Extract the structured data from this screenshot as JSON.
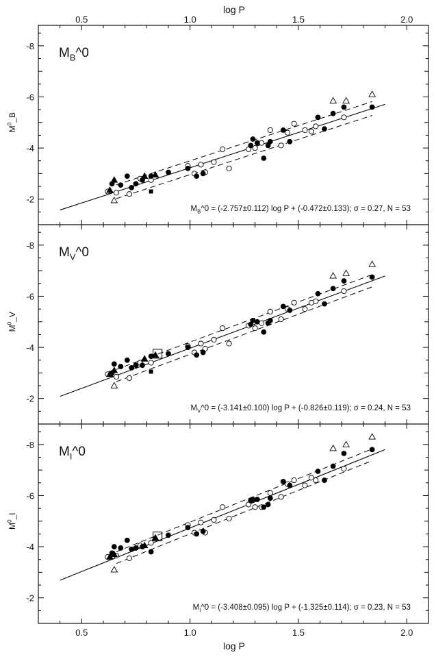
{
  "xlabel_top": "log P",
  "xlabel_bottom": "log P",
  "chart_data": [
    {
      "type": "scatter",
      "panel_label": "M_B^0",
      "ylabel": "M^0_B",
      "xlim": [
        0.3,
        2.1
      ],
      "ylim": [
        -1,
        -8.8
      ],
      "x_ticks": [
        "0.5",
        "1.0",
        "1.5",
        "2.0"
      ],
      "y_ticks": [
        "-8",
        "-6",
        "-4",
        "-2"
      ],
      "equation": "M_B^0 = (-2.757±0.112) log P + (-0.472±0.133); σ = 0.27, N =  53",
      "fit": {
        "slope": -2.757,
        "intercept": -0.472,
        "sigma": 0.27,
        "x_range": [
          0.4,
          1.9
        ]
      },
      "filled_circles": [
        [
          0.64,
          -2.6
        ],
        [
          0.68,
          -2.55
        ],
        [
          0.71,
          -2.9
        ],
        [
          0.73,
          -2.45
        ],
        [
          0.75,
          -2.6
        ],
        [
          0.78,
          -2.75
        ],
        [
          0.82,
          -2.9
        ],
        [
          0.9,
          -3.05
        ],
        [
          0.99,
          -3.2
        ],
        [
          1.03,
          -2.9
        ],
        [
          1.06,
          -3.0
        ],
        [
          1.28,
          -4.1
        ],
        [
          1.29,
          -4.35
        ],
        [
          1.31,
          -4.2
        ],
        [
          1.34,
          -3.6
        ],
        [
          1.36,
          -4.1
        ],
        [
          1.37,
          -4.25
        ],
        [
          1.43,
          -4.7
        ],
        [
          1.46,
          -4.25
        ],
        [
          1.59,
          -5.2
        ],
        [
          1.62,
          -4.75
        ],
        [
          1.66,
          -5.35
        ],
        [
          1.71,
          -5.6
        ],
        [
          1.84,
          -5.6
        ]
      ],
      "open_circles": [
        [
          0.62,
          -2.3
        ],
        [
          0.66,
          -2.25
        ],
        [
          0.72,
          -2.2
        ],
        [
          0.77,
          -2.8
        ],
        [
          0.82,
          -2.75
        ],
        [
          0.99,
          -3.3
        ],
        [
          1.02,
          -3.0
        ],
        [
          1.05,
          -3.35
        ],
        [
          1.07,
          -3.05
        ],
        [
          1.11,
          -3.45
        ],
        [
          1.15,
          -3.95
        ],
        [
          1.18,
          -3.2
        ],
        [
          1.27,
          -3.95
        ],
        [
          1.3,
          -4.0
        ],
        [
          1.33,
          -4.2
        ],
        [
          1.37,
          -4.7
        ],
        [
          1.42,
          -4.1
        ],
        [
          1.45,
          -4.6
        ],
        [
          1.48,
          -4.95
        ],
        [
          1.53,
          -4.7
        ],
        [
          1.56,
          -4.65
        ],
        [
          1.58,
          -4.85
        ],
        [
          1.71,
          -5.2
        ]
      ],
      "filled_triangles": [
        [
          0.63,
          -2.35
        ],
        [
          0.65,
          -2.75
        ],
        [
          0.79,
          -2.9
        ],
        [
          0.84,
          -2.95
        ]
      ],
      "filled_squares": [
        [
          0.82,
          -2.3
        ]
      ],
      "open_triangles": [
        [
          0.65,
          -1.95
        ],
        [
          1.66,
          -5.85
        ],
        [
          1.72,
          -5.85
        ],
        [
          1.84,
          -6.1
        ]
      ],
      "open_squares": []
    },
    {
      "type": "scatter",
      "panel_label": "M_V^0",
      "ylabel": "M^0_V",
      "xlim": [
        0.3,
        2.1
      ],
      "ylim": [
        -1,
        -8.8
      ],
      "x_ticks": [
        "0.5",
        "1.0",
        "1.5",
        "2.0"
      ],
      "y_ticks": [
        "-8",
        "-6",
        "-4",
        "-2"
      ],
      "equation": "M_V^0 = (-3.141±0.100) log P + (-0.826±0.119); σ = 0.24, N =  53",
      "fit": {
        "slope": -3.141,
        "intercept": -0.826,
        "sigma": 0.24,
        "x_range": [
          0.4,
          1.9
        ]
      },
      "filled_circles": [
        [
          0.64,
          -3.0
        ],
        [
          0.65,
          -3.35
        ],
        [
          0.68,
          -3.25
        ],
        [
          0.71,
          -3.5
        ],
        [
          0.73,
          -3.2
        ],
        [
          0.75,
          -3.3
        ],
        [
          0.78,
          -3.3
        ],
        [
          0.82,
          -3.65
        ],
        [
          0.9,
          -3.75
        ],
        [
          0.99,
          -4.0
        ],
        [
          1.03,
          -3.7
        ],
        [
          1.06,
          -3.8
        ],
        [
          1.28,
          -4.9
        ],
        [
          1.29,
          -5.05
        ],
        [
          1.31,
          -5.0
        ],
        [
          1.34,
          -4.6
        ],
        [
          1.36,
          -4.95
        ],
        [
          1.37,
          -5.05
        ],
        [
          1.43,
          -5.6
        ],
        [
          1.46,
          -5.45
        ],
        [
          1.59,
          -6.1
        ],
        [
          1.62,
          -5.7
        ],
        [
          1.66,
          -6.3
        ],
        [
          1.71,
          -6.6
        ],
        [
          1.84,
          -6.75
        ]
      ],
      "open_circles": [
        [
          0.62,
          -2.95
        ],
        [
          0.66,
          -2.85
        ],
        [
          0.72,
          -2.8
        ],
        [
          0.77,
          -3.4
        ],
        [
          0.82,
          -3.4
        ],
        [
          0.99,
          -4.05
        ],
        [
          1.02,
          -3.8
        ],
        [
          1.05,
          -4.15
        ],
        [
          1.07,
          -3.95
        ],
        [
          1.11,
          -4.3
        ],
        [
          1.15,
          -4.75
        ],
        [
          1.18,
          -4.15
        ],
        [
          1.27,
          -4.85
        ],
        [
          1.3,
          -4.75
        ],
        [
          1.33,
          -4.95
        ],
        [
          1.37,
          -5.4
        ],
        [
          1.42,
          -5.1
        ],
        [
          1.45,
          -5.5
        ],
        [
          1.48,
          -5.75
        ],
        [
          1.53,
          -5.5
        ],
        [
          1.56,
          -5.75
        ],
        [
          1.58,
          -5.8
        ],
        [
          1.71,
          -6.2
        ]
      ],
      "filled_triangles": [
        [
          0.63,
          -2.95
        ],
        [
          0.65,
          -3.1
        ],
        [
          0.79,
          -3.55
        ],
        [
          0.84,
          -3.7
        ]
      ],
      "filled_squares": [
        [
          0.82,
          -3.05
        ]
      ],
      "open_triangles": [
        [
          0.65,
          -2.5
        ],
        [
          1.66,
          -6.8
        ],
        [
          1.72,
          -6.9
        ],
        [
          1.84,
          -7.25
        ]
      ],
      "open_squares": [
        [
          0.85,
          -3.75
        ]
      ]
    },
    {
      "type": "scatter",
      "panel_label": "M_I^0",
      "ylabel": "M^0_I",
      "xlim": [
        0.3,
        2.1
      ],
      "ylim": [
        -1,
        -8.8
      ],
      "x_ticks": [
        "0.5",
        "1.0",
        "1.5",
        "2.0"
      ],
      "y_ticks": [
        "-8",
        "-6",
        "-4",
        "-2"
      ],
      "equation": "M_I^0 = (-3.408±0.095) log P + (-1.325±0.114); σ = 0.23, N =  53",
      "fit": {
        "slope": -3.408,
        "intercept": -1.325,
        "sigma": 0.23,
        "x_range": [
          0.4,
          1.9
        ]
      },
      "filled_circles": [
        [
          0.64,
          -3.75
        ],
        [
          0.65,
          -4.0
        ],
        [
          0.68,
          -3.95
        ],
        [
          0.71,
          -4.25
        ],
        [
          0.73,
          -3.9
        ],
        [
          0.75,
          -3.95
        ],
        [
          0.78,
          -4.0
        ],
        [
          0.82,
          -3.8
        ],
        [
          0.9,
          -4.45
        ],
        [
          0.99,
          -4.75
        ],
        [
          1.03,
          -4.5
        ],
        [
          1.06,
          -4.6
        ],
        [
          1.28,
          -5.8
        ],
        [
          1.29,
          -5.85
        ],
        [
          1.31,
          -5.85
        ],
        [
          1.34,
          -5.55
        ],
        [
          1.36,
          -5.65
        ],
        [
          1.37,
          -5.9
        ],
        [
          1.43,
          -6.55
        ],
        [
          1.46,
          -6.4
        ],
        [
          1.59,
          -6.95
        ],
        [
          1.62,
          -6.6
        ],
        [
          1.66,
          -7.15
        ],
        [
          1.71,
          -7.65
        ],
        [
          1.84,
          -7.8
        ]
      ],
      "open_circles": [
        [
          0.62,
          -3.6
        ],
        [
          0.66,
          -3.65
        ],
        [
          0.72,
          -3.55
        ],
        [
          0.77,
          -4.05
        ],
        [
          0.82,
          -4.15
        ],
        [
          0.99,
          -4.85
        ],
        [
          1.02,
          -4.55
        ],
        [
          1.05,
          -4.95
        ],
        [
          1.07,
          -4.55
        ],
        [
          1.11,
          -5.05
        ],
        [
          1.15,
          -5.55
        ],
        [
          1.18,
          -5.1
        ],
        [
          1.27,
          -5.65
        ],
        [
          1.3,
          -5.55
        ],
        [
          1.33,
          -5.55
        ],
        [
          1.37,
          -6.1
        ],
        [
          1.42,
          -5.95
        ],
        [
          1.45,
          -6.45
        ],
        [
          1.48,
          -6.6
        ],
        [
          1.53,
          -6.4
        ],
        [
          1.56,
          -6.7
        ],
        [
          1.58,
          -6.6
        ],
        [
          1.71,
          -7.05
        ]
      ],
      "filled_triangles": [
        [
          0.63,
          -3.6
        ],
        [
          0.65,
          -3.7
        ],
        [
          0.79,
          -4.05
        ],
        [
          0.84,
          -4.35
        ]
      ],
      "filled_squares": [
        [
          0.82,
          -3.8
        ]
      ],
      "open_triangles": [
        [
          0.65,
          -3.1
        ],
        [
          1.66,
          -7.85
        ],
        [
          1.72,
          -8.0
        ],
        [
          1.84,
          -8.3
        ]
      ],
      "open_squares": [
        [
          0.85,
          -4.4
        ]
      ]
    }
  ]
}
